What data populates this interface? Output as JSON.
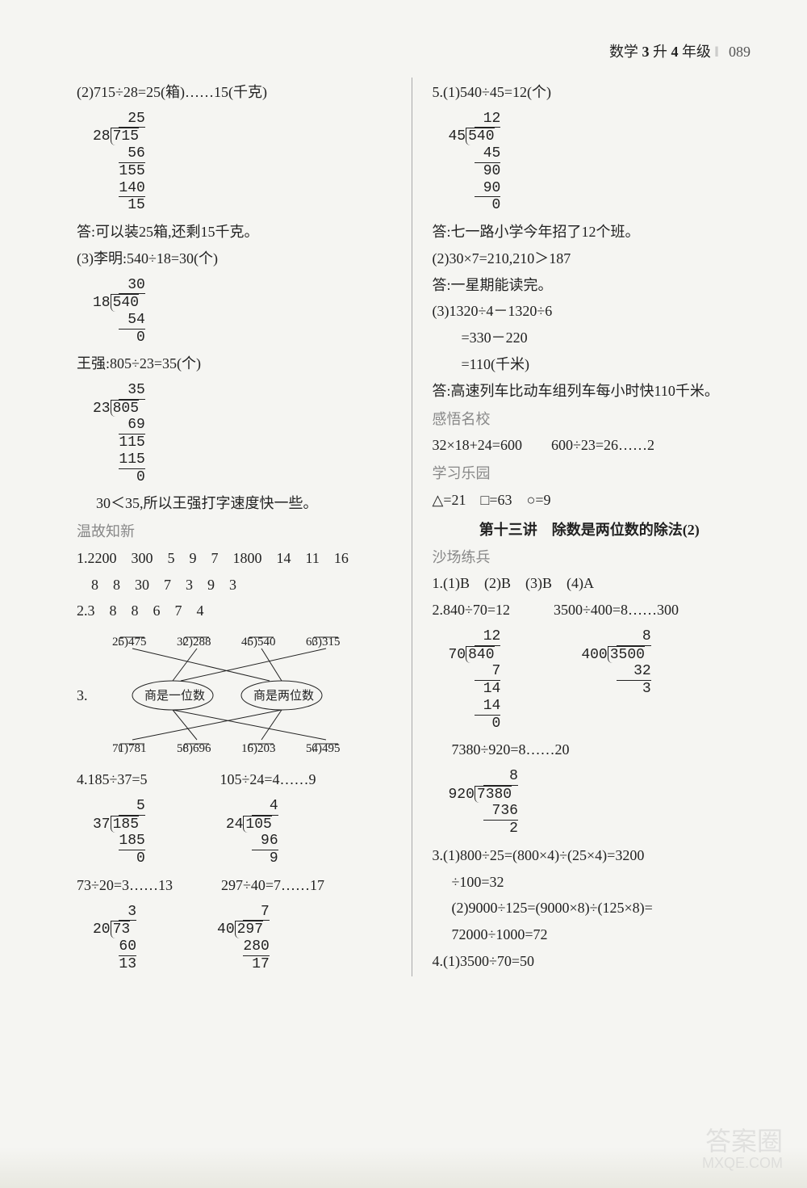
{
  "header": {
    "subject": "数学",
    "grade_from": "3",
    "mid": "升",
    "grade_to": "4",
    "grade_unit": "年级",
    "page_num": "089"
  },
  "left": {
    "p2": "(2)715÷28=25(箱)……15(千克)",
    "ld1": {
      "divisor": "28",
      "dividend": "715",
      "quotient": "25",
      "rows": [
        "56",
        "155",
        "140",
        "15"
      ]
    },
    "ans1": "答:可以装25箱,还剩15千克。",
    "p3": "(3)李明:540÷18=30(个)",
    "ld2": {
      "divisor": "18",
      "dividend": "540",
      "quotient": "30",
      "rows": [
        "54",
        "0"
      ]
    },
    "wq": "王强:805÷23=35(个)",
    "ld3": {
      "divisor": "23",
      "dividend": "805",
      "quotient": "35",
      "rows": [
        "69",
        "115",
        "115",
        "0"
      ]
    },
    "cmp": "30＜35,所以王强打字速度快一些。",
    "sec1": "温故知新",
    "q1a": "1.2200　300　5　9　7　1800　14　11　16",
    "q1b": "　8　8　30　7　3　9　3",
    "q2": "2.3　8　8　6　7　4",
    "q3_label": "3.",
    "match": {
      "top": [
        "25)475",
        "32)288",
        "45)540",
        "63)315"
      ],
      "ovals": [
        "商是一位数",
        "商是两位数"
      ],
      "bottom": [
        "71)781",
        "58)696",
        "16)203",
        "54)495"
      ]
    },
    "q4a": "4.185÷37=5",
    "q4b": "105÷24=4……9",
    "ld4a": {
      "divisor": "37",
      "dividend": "185",
      "quotient": "5",
      "rows": [
        "185",
        "0"
      ]
    },
    "ld4b": {
      "divisor": "24",
      "dividend": "105",
      "quotient": "4",
      "rows": [
        "96",
        "9"
      ]
    },
    "q4c": "73÷20=3……13",
    "q4d": "297÷40=7……17",
    "ld4c": {
      "divisor": "20",
      "dividend": "73",
      "quotient": "3",
      "rows": [
        "60",
        "13"
      ]
    },
    "ld4d": {
      "divisor": "40",
      "dividend": "297",
      "quotient": "7",
      "rows": [
        "280",
        "17"
      ]
    }
  },
  "right": {
    "p5": "5.(1)540÷45=12(个)",
    "ld5": {
      "divisor": "45",
      "dividend": "540",
      "quotient": "12",
      "rows": [
        "45",
        "90",
        "90",
        "0"
      ]
    },
    "ans5": "答:七一路小学今年招了12个班。",
    "p5b": "(2)30×7=210,210＞187",
    "ans5b": "答:一星期能读完。",
    "p5c1": "(3)1320÷4－1320÷6",
    "p5c2": "　　=330－220",
    "p5c3": "　　=110(千米)",
    "ans5c": "答:高速列车比动车组列车每小时快110千米。",
    "sec2": "感悟名校",
    "gw": "32×18+24=600　　600÷23=26……2",
    "sec3": "学习乐园",
    "ly": "△=21　□=63　○=9",
    "lesson": "第十三讲　除数是两位数的除法(2)",
    "sec4": "沙场练兵",
    "r1": "1.(1)B　(2)B　(3)B　(4)A",
    "r2": "2.840÷70=12　　　3500÷400=8……300",
    "ld6a": {
      "divisor": "70",
      "dividend": "840",
      "quotient": "12",
      "rows": [
        "7",
        "14",
        "14",
        "0"
      ]
    },
    "ld6b": {
      "divisor": "400",
      "dividend": "3500",
      "quotient": "8",
      "rows": [
        "32",
        "3"
      ]
    },
    "r2b": "7380÷920=8……20",
    "ld7": {
      "divisor": "920",
      "dividend": "7380",
      "quotient": "8",
      "rows": [
        "736",
        "2"
      ]
    },
    "r3a": "3.(1)800÷25=(800×4)÷(25×4)=3200",
    "r3b": "÷100=32",
    "r3c": "(2)9000÷125=(9000×8)÷(125×8)=",
    "r3d": "72000÷1000=72",
    "r4": "4.(1)3500÷70=50"
  },
  "watermark": {
    "l1": "答案圈",
    "l2": "MXQE.COM"
  }
}
